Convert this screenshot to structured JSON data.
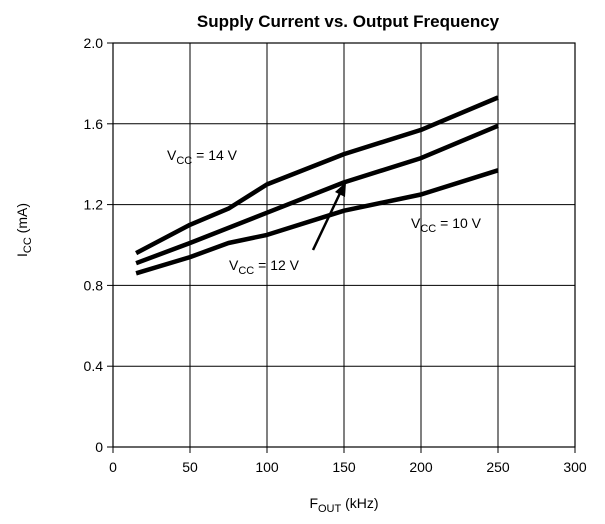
{
  "chart_data": {
    "type": "line",
    "title": "Supply Current vs. Output Frequency",
    "xlabel": {
      "main": "F",
      "sub": "OUT",
      "rest": " (kHz)"
    },
    "ylabel": {
      "main": "I",
      "sub": "CC",
      "rest": " (mA)"
    },
    "xlim": [
      0,
      300
    ],
    "ylim": [
      0,
      2.0
    ],
    "x_ticks": [
      0,
      50,
      100,
      150,
      200,
      250,
      300
    ],
    "y_ticks": [
      0,
      0.4,
      0.8,
      1.2,
      1.6,
      2.0
    ],
    "y_tick_labels": [
      "0",
      "0.4",
      "0.8",
      "1.2",
      "1.6",
      "2.0"
    ],
    "grid": true,
    "series": [
      {
        "name": "VCC = 14 V",
        "label": {
          "main": "V",
          "sub": "CC",
          "rest": " = 14 V"
        },
        "x": [
          15,
          50,
          75,
          100,
          150,
          200,
          250
        ],
        "y": [
          0.96,
          1.1,
          1.18,
          1.3,
          1.45,
          1.57,
          1.73
        ]
      },
      {
        "name": "VCC = 12 V",
        "label": {
          "main": "V",
          "sub": "CC",
          "rest": " = 12 V"
        },
        "x": [
          15,
          50,
          100,
          150,
          200,
          250
        ],
        "y": [
          0.91,
          1.01,
          1.16,
          1.31,
          1.43,
          1.59
        ]
      },
      {
        "name": "VCC = 10 V",
        "label": {
          "main": "V",
          "sub": "CC",
          "rest": " = 10 V"
        },
        "x": [
          15,
          50,
          75,
          100,
          150,
          200,
          250
        ],
        "y": [
          0.86,
          0.94,
          1.01,
          1.05,
          1.17,
          1.25,
          1.37
        ]
      }
    ]
  }
}
